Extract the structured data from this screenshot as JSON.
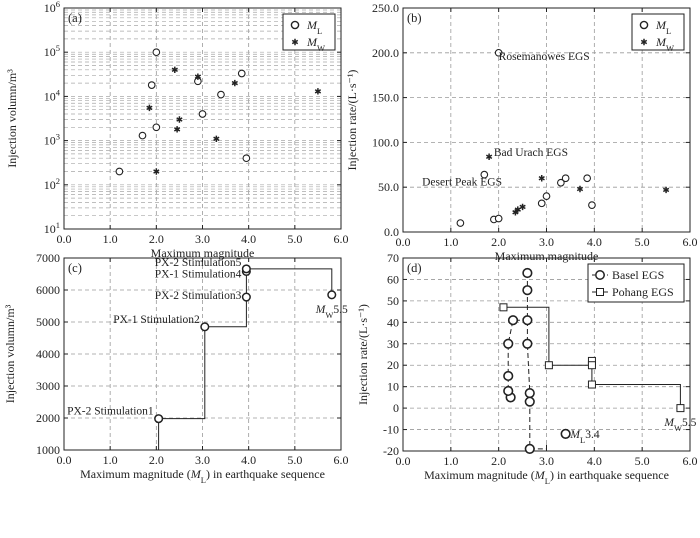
{
  "chart_data": [
    {
      "id": "a",
      "type": "scatter",
      "panel_label": "(a)",
      "xlabel": "Maximum magnitude",
      "ylabel": "Injection volumn/m³",
      "xlim": [
        0,
        6
      ],
      "ylim": [
        10,
        1000000
      ],
      "yscale": "log",
      "xticks": [
        "0.0",
        "1.0",
        "2.0",
        "3.0",
        "4.0",
        "5.0",
        "6.0"
      ],
      "yticks": [
        {
          "base": "10",
          "exp": "1"
        },
        {
          "base": "10",
          "exp": "2"
        },
        {
          "base": "10",
          "exp": "3"
        },
        {
          "base": "10",
          "exp": "4"
        },
        {
          "base": "10",
          "exp": "5"
        },
        {
          "base": "10",
          "exp": "6"
        }
      ],
      "legend": {
        "position": "top-right",
        "entries": [
          {
            "marker": "circle",
            "label": "M",
            "sub": "L"
          },
          {
            "marker": "star",
            "label": "M",
            "sub": "W"
          }
        ]
      },
      "series": [
        {
          "name": "ML",
          "marker": "circle",
          "points": [
            [
              1.2,
              200
            ],
            [
              1.7,
              1300
            ],
            [
              1.9,
              18000
            ],
            [
              2.0,
              2000
            ],
            [
              2.0,
              100000
            ],
            [
              2.9,
              22000
            ],
            [
              3.0,
              4000
            ],
            [
              3.4,
              11000
            ],
            [
              3.85,
              33000
            ],
            [
              3.95,
              400
            ]
          ]
        },
        {
          "name": "MW",
          "marker": "star",
          "points": [
            [
              1.85,
              5500
            ],
            [
              2.0,
              200
            ],
            [
              2.4,
              40000
            ],
            [
              2.45,
              1800
            ],
            [
              2.5,
              3000
            ],
            [
              2.9,
              28000
            ],
            [
              3.3,
              1100
            ],
            [
              3.7,
              20000
            ],
            [
              5.5,
              13000
            ]
          ]
        }
      ]
    },
    {
      "id": "b",
      "type": "scatter",
      "panel_label": "(b)",
      "xlabel": "Maximum magnitude",
      "ylabel": "Injection rate/(L·s⁻¹)",
      "xlim": [
        0,
        6
      ],
      "ylim": [
        0,
        250
      ],
      "xticks": [
        "0.0",
        "1.0",
        "2.0",
        "3.0",
        "4.0",
        "5.0",
        "6.0"
      ],
      "yticks": [
        "0.0",
        "50.0",
        "100.0",
        "150.0",
        "200.0",
        "250.0"
      ],
      "legend": {
        "position": "top-right",
        "entries": [
          {
            "marker": "circle",
            "label": "M",
            "sub": "L"
          },
          {
            "marker": "star",
            "label": "M",
            "sub": "W"
          }
        ]
      },
      "annotations": [
        {
          "text": "Rosemanowes EGS",
          "x": 2.0,
          "y": 192
        },
        {
          "text": "Bad Urach EGS",
          "x": 1.9,
          "y": 85
        },
        {
          "text": "Desert Peak EGS",
          "x": 0.4,
          "y": 52
        }
      ],
      "series": [
        {
          "name": "ML",
          "marker": "circle",
          "points": [
            [
              1.2,
              10
            ],
            [
              1.7,
              64
            ],
            [
              1.9,
              14
            ],
            [
              2.0,
              15
            ],
            [
              2.0,
              200
            ],
            [
              2.9,
              32
            ],
            [
              3.0,
              40
            ],
            [
              3.3,
              55
            ],
            [
              3.4,
              60
            ],
            [
              3.85,
              60
            ],
            [
              3.95,
              30
            ]
          ]
        },
        {
          "name": "MW",
          "marker": "star",
          "points": [
            [
              1.8,
              84
            ],
            [
              2.35,
              22
            ],
            [
              2.4,
              25
            ],
            [
              2.5,
              28
            ],
            [
              2.9,
              60
            ],
            [
              3.7,
              48
            ],
            [
              5.5,
              47
            ]
          ]
        }
      ]
    },
    {
      "id": "c",
      "type": "line",
      "panel_label": "(c)",
      "xlabel": "Maximum magnitude  (M_L) in earthquake sequence",
      "ylabel": "Injection volumn/m³",
      "xlim": [
        0,
        6
      ],
      "ylim": [
        1000,
        7000
      ],
      "xticks": [
        "0.0",
        "1.0",
        "2.0",
        "3.0",
        "4.0",
        "5.0",
        "6.0"
      ],
      "yticks": [
        "1000",
        "2000",
        "3000",
        "4000",
        "5000",
        "6000",
        "7000"
      ],
      "step_line": [
        [
          2.05,
          1000
        ],
        [
          2.05,
          1980
        ],
        [
          3.05,
          1980
        ],
        [
          3.05,
          4850
        ],
        [
          3.95,
          4850
        ],
        [
          3.95,
          6660
        ],
        [
          5.8,
          6660
        ],
        [
          5.8,
          5850
        ]
      ],
      "points": [
        {
          "x": 2.05,
          "y": 1980,
          "label": "PX-2 Stimulation1"
        },
        {
          "x": 3.05,
          "y": 4850,
          "label": "PX-1 Stimulation2"
        },
        {
          "x": 3.95,
          "y": 5780,
          "label": "PX-2 Stimulation3"
        },
        {
          "x": 3.95,
          "y": 6580,
          "label": "PX-1 Stimulation4"
        },
        {
          "x": 3.95,
          "y": 6660,
          "label": "PX-2 Stimulation5"
        },
        {
          "x": 5.8,
          "y": 5850,
          "label": "M_W5.5"
        }
      ]
    },
    {
      "id": "d",
      "type": "scatter",
      "panel_label": "(d)",
      "xlabel": "Maximum magnitude  (M_L) in earthquake sequence",
      "ylabel": "Injection rate/(L·s⁻¹)",
      "xlim": [
        0,
        6
      ],
      "ylim": [
        -20,
        70
      ],
      "xticks": [
        "0.0",
        "1.0",
        "2.0",
        "3.0",
        "4.0",
        "5.0",
        "6.0"
      ],
      "yticks": [
        "-20",
        "-10",
        "0",
        "10",
        "20",
        "30",
        "40",
        "50",
        "60",
        "70"
      ],
      "legend": {
        "position": "top-right",
        "entries": [
          {
            "marker": "circle",
            "label": "Basel EGS"
          },
          {
            "marker": "square",
            "label": "Pohang EGS"
          }
        ]
      },
      "annotations": [
        {
          "text": "M_L3.4",
          "x": 3.5,
          "y": -12
        },
        {
          "text": "M_W5.5",
          "x": 5.8,
          "y": -5
        }
      ],
      "series": [
        {
          "name": "Basel EGS",
          "marker": "circle",
          "style": "dashed",
          "points": [
            [
              2.25,
              5
            ],
            [
              2.2,
              8
            ],
            [
              2.2,
              15
            ],
            [
              2.2,
              30
            ],
            [
              2.3,
              41
            ],
            [
              2.6,
              30
            ],
            [
              2.6,
              41
            ],
            [
              2.6,
              55
            ],
            [
              2.6,
              63
            ],
            [
              2.65,
              7
            ],
            [
              2.65,
              3
            ],
            [
              2.65,
              -19
            ],
            [
              3.4,
              -12
            ]
          ]
        },
        {
          "name": "Pohang EGS",
          "marker": "square",
          "style": "solid",
          "points": [
            [
              2.1,
              47
            ],
            [
              3.05,
              20
            ],
            [
              3.95,
              22
            ],
            [
              3.95,
              20
            ],
            [
              3.95,
              11
            ],
            [
              5.8,
              0
            ]
          ]
        }
      ]
    }
  ]
}
